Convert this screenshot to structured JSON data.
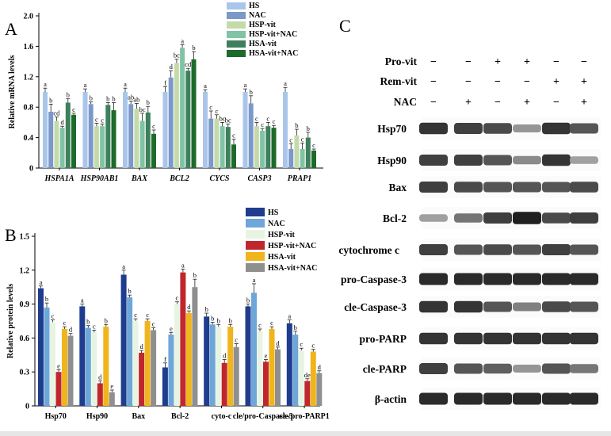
{
  "chart_data": [
    {
      "panel": "A",
      "type": "bar",
      "ylabel": "Relative mRNA levels",
      "ylim": [
        0,
        2.0
      ],
      "yticks": [
        "0",
        "0.4",
        "0.8",
        "1.2",
        "1.6",
        "2.0"
      ],
      "categories": [
        "HSPA1A",
        "HSP90AB1",
        "BAX",
        "BCL2",
        "CYCS",
        "CASP3",
        "PRAP1"
      ],
      "series": [
        {
          "name": "HS",
          "color": "#a9c6ea",
          "values": [
            1.0,
            1.0,
            1.0,
            1.0,
            1.0,
            1.0,
            1.0
          ],
          "errors": [
            0.05,
            0.04,
            0.05,
            0.07,
            0.03,
            0.04,
            0.06
          ],
          "labels": [
            "a",
            "a",
            "a",
            "f",
            "a",
            "a",
            "a"
          ]
        },
        {
          "name": "NAC",
          "color": "#7b98c9",
          "values": [
            0.74,
            0.84,
            0.84,
            1.19,
            0.65,
            0.85,
            0.25
          ],
          "errors": [
            0.1,
            0.03,
            0.04,
            0.09,
            0.1,
            0.1,
            0.07
          ],
          "labels": [
            "b",
            "b",
            "ab",
            "d",
            "c",
            "b",
            "c"
          ]
        },
        {
          "name": "HSP-vit",
          "color": "#c4dba9",
          "values": [
            0.62,
            0.55,
            0.78,
            1.38,
            0.65,
            0.55,
            0.43
          ],
          "errors": [
            0.05,
            0.04,
            0.07,
            0.05,
            0.05,
            0.05,
            0.08
          ],
          "labels": [
            "cd",
            "c",
            "ab",
            "bc",
            "c",
            "c",
            "b"
          ]
        },
        {
          "name": "HSP-vit+NAC",
          "color": "#7fc4a5",
          "values": [
            0.53,
            0.55,
            0.62,
            1.58,
            0.55,
            0.49,
            0.25
          ],
          "errors": [
            0.02,
            0.03,
            0.1,
            0.04,
            0.05,
            0.03,
            0.08
          ],
          "labels": [
            "d",
            "c",
            "bc",
            "a",
            "bc",
            "c",
            "c"
          ]
        },
        {
          "name": "HSA-vit",
          "color": "#3e7f5c",
          "values": [
            0.86,
            0.83,
            0.73,
            1.28,
            0.54,
            0.55,
            0.4
          ],
          "errors": [
            0.05,
            0.03,
            0.08,
            0.03,
            0.04,
            0.05,
            0.07
          ],
          "labels": [
            "b",
            "b",
            "b",
            "cd",
            "bc",
            "c",
            "b"
          ]
        },
        {
          "name": "HSA-vit+NAC",
          "color": "#1d6b2a",
          "values": [
            0.7,
            0.76,
            0.45,
            1.43,
            0.31,
            0.53,
            0.23
          ],
          "errors": [
            0.02,
            0.1,
            0.05,
            0.1,
            0.07,
            0.03,
            0.02
          ],
          "labels": [
            "c",
            "b",
            "c",
            "b",
            "c",
            "c",
            "c"
          ]
        }
      ]
    },
    {
      "panel": "B",
      "type": "bar",
      "ylabel": "Relative protein levels",
      "ylim": [
        0,
        1.5
      ],
      "yticks": [
        "0",
        "0.3",
        "0.6",
        "0.9",
        "1.2",
        "1.5"
      ],
      "categories": [
        "Hsp70",
        "Hsp90",
        "Bax",
        "Bcl-2",
        "cyto-c",
        "cle/pro-Caspase-3",
        "cle/pro-PARP1"
      ],
      "series": [
        {
          "name": "HS",
          "color": "#1f3c8e",
          "values": [
            1.04,
            0.88,
            1.16,
            0.34,
            0.79,
            0.88,
            0.73
          ],
          "errors": [
            0.02,
            0.02,
            0.04,
            0.04,
            0.03,
            0.02,
            0.03
          ],
          "labels": [
            "a",
            "a",
            "a",
            "f",
            "b",
            "b",
            "a"
          ]
        },
        {
          "name": "NAC",
          "color": "#6ea6d8",
          "values": [
            0.87,
            0.69,
            0.96,
            0.63,
            0.72,
            1.0,
            0.63
          ],
          "errors": [
            0.04,
            0.02,
            0.02,
            0.02,
            0.02,
            0.08,
            0.03
          ],
          "labels": [
            "b",
            "b",
            "b",
            "e",
            "b",
            "a",
            "b"
          ]
        },
        {
          "name": "HSP-vit",
          "color": "#e8f4e2",
          "values": [
            0.74,
            0.65,
            0.75,
            0.9,
            0.7,
            0.66,
            0.49
          ],
          "errors": [
            0.02,
            0.02,
            0.02,
            0.02,
            0.02,
            0.02,
            0.02
          ],
          "labels": [
            "c",
            "c",
            "c",
            "c",
            "b",
            "c",
            "c"
          ]
        },
        {
          "name": "HSP-vit+NAC",
          "color": "#c0272d",
          "values": [
            0.3,
            0.2,
            0.47,
            1.18,
            0.38,
            0.39,
            0.22
          ],
          "errors": [
            0.02,
            0.02,
            0.02,
            0.03,
            0.03,
            0.02,
            0.02
          ],
          "labels": [
            "e",
            "d",
            "d",
            "a",
            "d",
            "e",
            "de"
          ]
        },
        {
          "name": "HSA-vit",
          "color": "#f0b41c",
          "values": [
            0.68,
            0.7,
            0.75,
            0.82,
            0.7,
            0.68,
            0.48
          ],
          "errors": [
            0.02,
            0.02,
            0.02,
            0.02,
            0.02,
            0.02,
            0.02
          ],
          "labels": [
            "c",
            "b",
            "c",
            "d",
            "b",
            "c",
            "c"
          ]
        },
        {
          "name": "HSA-vit+NAC",
          "color": "#8f8f8f",
          "values": [
            0.62,
            0.12,
            0.67,
            1.05,
            0.52,
            0.5,
            0.29
          ],
          "errors": [
            0.02,
            0.02,
            0.02,
            0.07,
            0.03,
            0.02,
            0.02
          ],
          "labels": [
            "d",
            "e",
            "c",
            "b",
            "c",
            "d",
            "d"
          ]
        }
      ]
    }
  ],
  "blot": {
    "panel": "C",
    "conditions": [
      {
        "label": "Pro-vit",
        "signs": [
          "−",
          "−",
          "+",
          "+",
          "−",
          "−"
        ]
      },
      {
        "label": "Rem-vit",
        "signs": [
          "−",
          "−",
          "−",
          "−",
          "+",
          "+"
        ]
      },
      {
        "label": "NAC",
        "signs": [
          "−",
          "+",
          "−",
          "+",
          "−",
          "+"
        ]
      }
    ],
    "bands": [
      {
        "label": "Hsp70",
        "intensity": [
          0.85,
          0.8,
          0.75,
          0.4,
          0.85,
          0.7
        ]
      },
      {
        "label": "Hsp90",
        "intensity": [
          0.8,
          0.8,
          0.7,
          0.45,
          0.85,
          0.35
        ]
      },
      {
        "label": "Bax",
        "intensity": [
          0.8,
          0.75,
          0.7,
          0.7,
          0.7,
          0.75
        ]
      },
      {
        "label": "Bcl-2",
        "intensity": [
          0.35,
          0.55,
          0.8,
          0.95,
          0.75,
          0.8
        ]
      },
      {
        "label": "cytochrome c",
        "intensity": [
          0.8,
          0.7,
          0.75,
          0.7,
          0.8,
          0.7
        ]
      },
      {
        "label": "pro-Caspase-3",
        "intensity": [
          0.9,
          0.9,
          0.9,
          0.9,
          0.9,
          0.9
        ]
      },
      {
        "label": "cle-Caspase-3",
        "intensity": [
          0.85,
          0.85,
          0.7,
          0.5,
          0.75,
          0.7
        ]
      },
      {
        "label": "pro-PARP",
        "intensity": [
          0.85,
          0.85,
          0.85,
          0.85,
          0.85,
          0.85
        ]
      },
      {
        "label": "cle-PARP",
        "intensity": [
          0.8,
          0.7,
          0.65,
          0.4,
          0.7,
          0.55
        ]
      },
      {
        "label": "β-actin",
        "intensity": [
          0.9,
          0.9,
          0.9,
          0.9,
          0.9,
          0.9
        ]
      }
    ]
  }
}
